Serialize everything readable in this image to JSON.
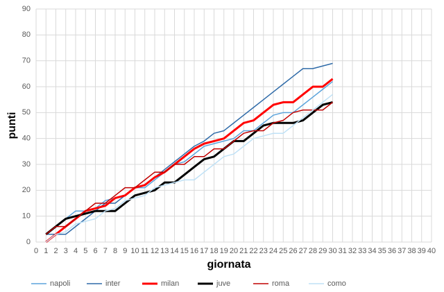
{
  "chart_data": {
    "type": "line",
    "x_label": "giornata",
    "y_label": "punti",
    "x": [
      1,
      2,
      3,
      4,
      5,
      6,
      7,
      8,
      9,
      10,
      11,
      12,
      13,
      14,
      15,
      16,
      17,
      18,
      19,
      20,
      21,
      22,
      23,
      24,
      25,
      26,
      27,
      28,
      29,
      30
    ],
    "series": [
      {
        "name": "napoli",
        "color": "#5ba3db",
        "values": [
          3,
          6,
          9,
          12,
          12,
          13,
          16,
          17,
          18,
          21,
          21,
          24,
          27,
          30,
          31,
          34,
          37,
          38,
          39,
          40,
          43,
          43,
          46,
          49,
          50,
          50,
          53,
          56,
          59,
          62
        ]
      },
      {
        "name": "inter",
        "color": "#2e6aa8",
        "values": [
          3,
          3,
          3,
          6,
          9,
          12,
          15,
          15,
          18,
          21,
          22,
          25,
          28,
          31,
          34,
          37,
          39,
          42,
          43,
          46,
          49,
          52,
          55,
          58,
          61,
          64,
          67,
          67,
          68,
          69
        ]
      },
      {
        "name": "milan",
        "color": "#ff0000",
        "values": [
          0,
          3,
          6,
          9,
          12,
          13,
          14,
          17,
          18,
          21,
          22,
          25,
          27,
          30,
          33,
          36,
          38,
          39,
          40,
          43,
          46,
          47,
          50,
          53,
          54,
          54,
          57,
          60,
          60,
          63
        ]
      },
      {
        "name": "juve",
        "color": "#000000",
        "values": [
          3,
          6,
          9,
          10,
          11,
          12,
          12,
          12,
          15,
          18,
          19,
          20,
          23,
          23,
          26,
          29,
          32,
          33,
          36,
          39,
          39,
          42,
          45,
          46,
          46,
          46,
          47,
          50,
          53,
          54
        ]
      },
      {
        "name": "roma",
        "color": "#c00000",
        "values": [
          3,
          6,
          6,
          9,
          12,
          15,
          15,
          18,
          21,
          21,
          24,
          27,
          27,
          30,
          30,
          33,
          33,
          36,
          36,
          39,
          42,
          43,
          43,
          46,
          47,
          50,
          51,
          51,
          51,
          54
        ]
      },
      {
        "name": "como",
        "color": "#bfe1f6",
        "values": [
          0,
          3,
          4,
          7,
          8,
          9,
          12,
          13,
          16,
          17,
          18,
          21,
          22,
          23,
          24,
          24,
          27,
          30,
          33,
          34,
          37,
          40,
          41,
          42,
          42,
          45,
          48,
          51,
          54,
          57
        ]
      }
    ],
    "xlim": [
      0,
      40
    ],
    "xticks": [
      0,
      1,
      2,
      3,
      4,
      5,
      6,
      7,
      8,
      9,
      10,
      11,
      12,
      13,
      14,
      15,
      16,
      17,
      18,
      19,
      20,
      21,
      22,
      23,
      24,
      25,
      26,
      27,
      28,
      29,
      30,
      31,
      32,
      33,
      34,
      35,
      36,
      37,
      38,
      39,
      40
    ],
    "ylim": [
      0,
      90
    ],
    "yticks": [
      0,
      10,
      20,
      30,
      40,
      50,
      60,
      70,
      80,
      90
    ],
    "grid": true,
    "legend": "bottom"
  }
}
